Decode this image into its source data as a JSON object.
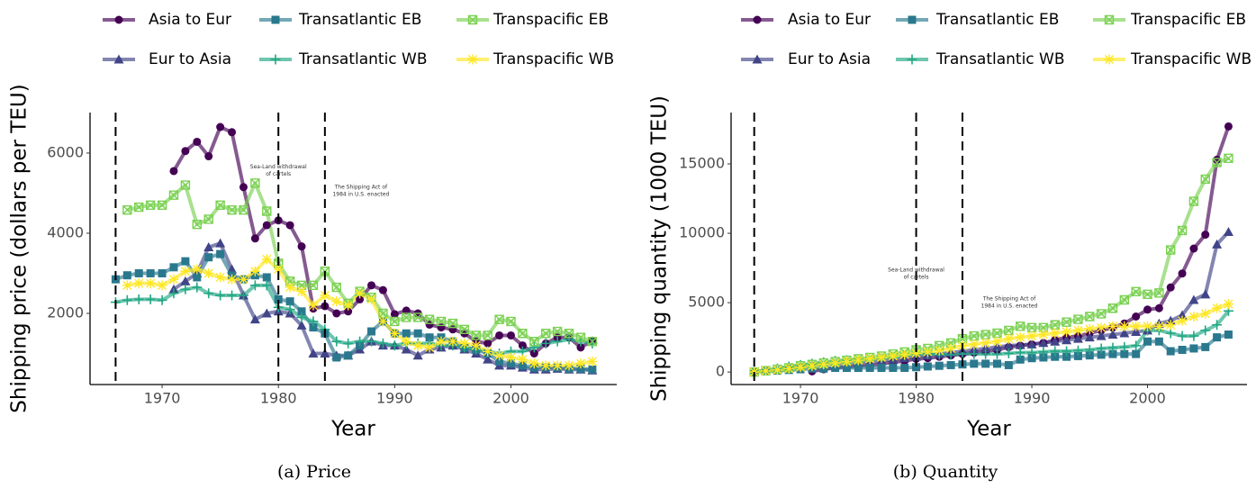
{
  "chart_data": [
    {
      "type": "line",
      "caption": "(a) Price",
      "xlabel": "Year",
      "ylabel": "Shipping price (dollars per TEU)",
      "x": [
        1966,
        1967,
        1968,
        1969,
        1970,
        1971,
        1972,
        1973,
        1974,
        1975,
        1976,
        1977,
        1978,
        1979,
        1980,
        1981,
        1982,
        1983,
        1984,
        1985,
        1986,
        1987,
        1988,
        1989,
        1990,
        1991,
        1992,
        1993,
        1994,
        1995,
        1996,
        1997,
        1998,
        1999,
        2000,
        2001,
        2002,
        2003,
        2004,
        2005,
        2006,
        2007
      ],
      "xlim": [
        1963.8,
        2009.1
      ],
      "xticks": [
        1970,
        1980,
        1990,
        2000
      ],
      "ylim": [
        225,
        7010
      ],
      "yticks": [
        2000,
        4000,
        6000
      ],
      "vlines": [
        1966,
        1980,
        1984
      ],
      "annotations": [
        {
          "lines": [
            "Sea-Land withdrawal",
            "of cartels"
          ]
        },
        {
          "lines": [
            "The Shipping Act of",
            "1984 in U.S. enacted"
          ]
        }
      ],
      "legend": "top",
      "series": [
        {
          "name": "Asia to Eur",
          "color": "#440154",
          "marker": "circle",
          "values": [
            null,
            null,
            null,
            null,
            null,
            5550,
            6050,
            6280,
            5920,
            6650,
            6520,
            5150,
            3870,
            4200,
            4320,
            4200,
            3670,
            2120,
            2180,
            2000,
            2050,
            2350,
            2700,
            2580,
            1980,
            2070,
            2000,
            1720,
            1650,
            1600,
            1500,
            1300,
            1250,
            1450,
            1450,
            1200,
            1000,
            1250,
            1400,
            1400,
            1150,
            1320
          ]
        },
        {
          "name": "Eur to Asia",
          "color": "#414487",
          "marker": "triangle",
          "values": [
            null,
            null,
            null,
            null,
            null,
            2600,
            2800,
            3000,
            3650,
            3750,
            3100,
            2450,
            1850,
            2000,
            2050,
            2000,
            1700,
            1000,
            1000,
            950,
            950,
            1100,
            1300,
            1200,
            1200,
            1100,
            950,
            1100,
            1150,
            1200,
            1100,
            1000,
            850,
            700,
            700,
            650,
            600,
            600,
            620,
            600,
            600,
            580
          ]
        },
        {
          "name": "Transatlantic EB",
          "color": "#2a788e",
          "marker": "square",
          "values": [
            2850,
            2950,
            3000,
            3000,
            3000,
            3150,
            3300,
            2900,
            3400,
            3480,
            2950,
            2850,
            2950,
            2900,
            2350,
            2300,
            2050,
            1650,
            1500,
            900,
            950,
            1200,
            1550,
            1800,
            1500,
            1500,
            1500,
            1400,
            1400,
            1300,
            1150,
            1100,
            1000,
            800,
            750,
            700,
            650,
            650,
            650,
            620,
            620,
            600
          ]
        },
        {
          "name": "Transatlantic WB",
          "color": "#22a884",
          "marker": "plus",
          "values": [
            2280,
            2330,
            2350,
            2350,
            2330,
            2500,
            2600,
            2650,
            2500,
            2450,
            2450,
            2450,
            2700,
            2700,
            2150,
            2100,
            1900,
            1800,
            1600,
            1300,
            1250,
            1300,
            1300,
            1250,
            1200,
            1250,
            1250,
            1250,
            1200,
            1200,
            1150,
            1100,
            1050,
            1000,
            1050,
            1050,
            1150,
            1250,
            1300,
            1350,
            1300,
            1250
          ]
        },
        {
          "name": "Transpacific EB",
          "color": "#7ad151",
          "marker": "square-x",
          "values": [
            null,
            4580,
            4650,
            4700,
            4700,
            4950,
            5200,
            4220,
            4350,
            4700,
            4580,
            4580,
            5250,
            4550,
            3250,
            2800,
            2700,
            2700,
            3050,
            2650,
            2250,
            2550,
            2400,
            2000,
            1800,
            1900,
            1900,
            1850,
            1800,
            1750,
            1600,
            1450,
            1450,
            1850,
            1800,
            1500,
            1300,
            1500,
            1550,
            1500,
            1400,
            1300
          ]
        },
        {
          "name": "Transpacific WB",
          "color": "#fde725",
          "marker": "asterisk",
          "values": [
            null,
            2700,
            2750,
            2750,
            2700,
            2850,
            3050,
            3100,
            3000,
            2900,
            2850,
            2850,
            3050,
            3350,
            3100,
            2650,
            2550,
            2200,
            2450,
            2300,
            2200,
            2500,
            2350,
            1800,
            1500,
            1300,
            1200,
            1150,
            1300,
            1300,
            1250,
            1200,
            1050,
            950,
            900,
            850,
            750,
            700,
            700,
            700,
            750,
            800
          ]
        }
      ]
    },
    {
      "type": "line",
      "caption": "(b) Quantity",
      "xlabel": "Year",
      "ylabel": "Shipping quantity (1000 TEU)",
      "x": [
        1966,
        1967,
        1968,
        1969,
        1970,
        1971,
        1972,
        1973,
        1974,
        1975,
        1976,
        1977,
        1978,
        1979,
        1980,
        1981,
        1982,
        1983,
        1984,
        1985,
        1986,
        1987,
        1988,
        1989,
        1990,
        1991,
        1992,
        1993,
        1994,
        1995,
        1996,
        1997,
        1998,
        1999,
        2000,
        2001,
        2002,
        2003,
        2004,
        2005,
        2006,
        2007
      ],
      "xlim": [
        1964.0,
        2008.6
      ],
      "xticks": [
        1970,
        1980,
        1990,
        2000
      ],
      "ylim": [
        -900,
        18700
      ],
      "yticks": [
        0,
        5000,
        10000,
        15000
      ],
      "vlines": [
        1966,
        1980,
        1984
      ],
      "annotations": [
        {
          "lines": [
            "Sea-Land withdrawal",
            "of cartels"
          ]
        },
        {
          "lines": [
            "The Shipping Act of",
            "1984 in U.S. enacted"
          ]
        }
      ],
      "legend": "top",
      "series": [
        {
          "name": "Asia to Eur",
          "color": "#440154",
          "marker": "circle",
          "values": [
            null,
            null,
            null,
            null,
            null,
            50,
            200,
            300,
            400,
            450,
            500,
            600,
            700,
            800,
            950,
            1000,
            1100,
            1200,
            1300,
            1400,
            1500,
            1600,
            1800,
            1900,
            2000,
            2100,
            2300,
            2500,
            2600,
            2800,
            3000,
            3200,
            3500,
            4000,
            4500,
            4600,
            6100,
            7100,
            8900,
            9900,
            15300,
            17700
          ]
        },
        {
          "name": "Eur to Asia",
          "color": "#414487",
          "marker": "triangle",
          "values": [
            50,
            100,
            200,
            300,
            400,
            500,
            550,
            600,
            650,
            700,
            750,
            800,
            900,
            1000,
            1100,
            1200,
            1300,
            1400,
            1500,
            1600,
            1700,
            1800,
            1900,
            1950,
            2000,
            2100,
            2200,
            2300,
            2400,
            2500,
            2600,
            2700,
            2800,
            2900,
            3000,
            3500,
            3700,
            4100,
            5200,
            5600,
            9200,
            10100
          ]
        },
        {
          "name": "Transatlantic EB",
          "color": "#2a788e",
          "marker": "square",
          "values": [
            0,
            50,
            100,
            150,
            200,
            250,
            250,
            300,
            300,
            300,
            300,
            300,
            300,
            300,
            350,
            400,
            450,
            500,
            550,
            600,
            600,
            600,
            500,
            900,
            1000,
            1050,
            1100,
            1100,
            1150,
            1200,
            1250,
            1300,
            1300,
            1300,
            2200,
            2200,
            1500,
            1600,
            1700,
            1800,
            2500,
            2700
          ]
        },
        {
          "name": "Transatlantic WB",
          "color": "#22a884",
          "marker": "plus",
          "values": [
            0,
            100,
            250,
            400,
            500,
            600,
            700,
            800,
            850,
            900,
            950,
            1000,
            1100,
            1200,
            1300,
            1300,
            1250,
            1250,
            1300,
            1300,
            1300,
            1300,
            1350,
            1400,
            1400,
            1450,
            1500,
            1500,
            1550,
            1600,
            1700,
            1750,
            1800,
            1900,
            3000,
            3000,
            2800,
            2600,
            2600,
            3000,
            3400,
            4400
          ]
        },
        {
          "name": "Transpacific EB",
          "color": "#7ad151",
          "marker": "square-x",
          "values": [
            0,
            100,
            200,
            300,
            450,
            550,
            650,
            750,
            850,
            950,
            1050,
            1150,
            1300,
            1450,
            1600,
            1700,
            1900,
            2100,
            2400,
            2600,
            2700,
            2800,
            3000,
            3300,
            3200,
            3200,
            3400,
            3600,
            3800,
            4000,
            4200,
            4600,
            5200,
            5800,
            5600,
            5700,
            8800,
            10200,
            12300,
            13900,
            15100,
            15400
          ]
        },
        {
          "name": "Transpacific WB",
          "color": "#fde725",
          "marker": "asterisk",
          "values": [
            0,
            80,
            150,
            250,
            350,
            450,
            550,
            650,
            750,
            850,
            950,
            1050,
            1150,
            1250,
            1350,
            1450,
            1550,
            1700,
            1900,
            2000,
            2100,
            2200,
            2400,
            2500,
            2600,
            2700,
            2800,
            2900,
            3000,
            3100,
            3200,
            3300,
            3300,
            3300,
            3300,
            3300,
            3400,
            3700,
            4000,
            4200,
            4600,
            4900
          ]
        }
      ]
    }
  ]
}
